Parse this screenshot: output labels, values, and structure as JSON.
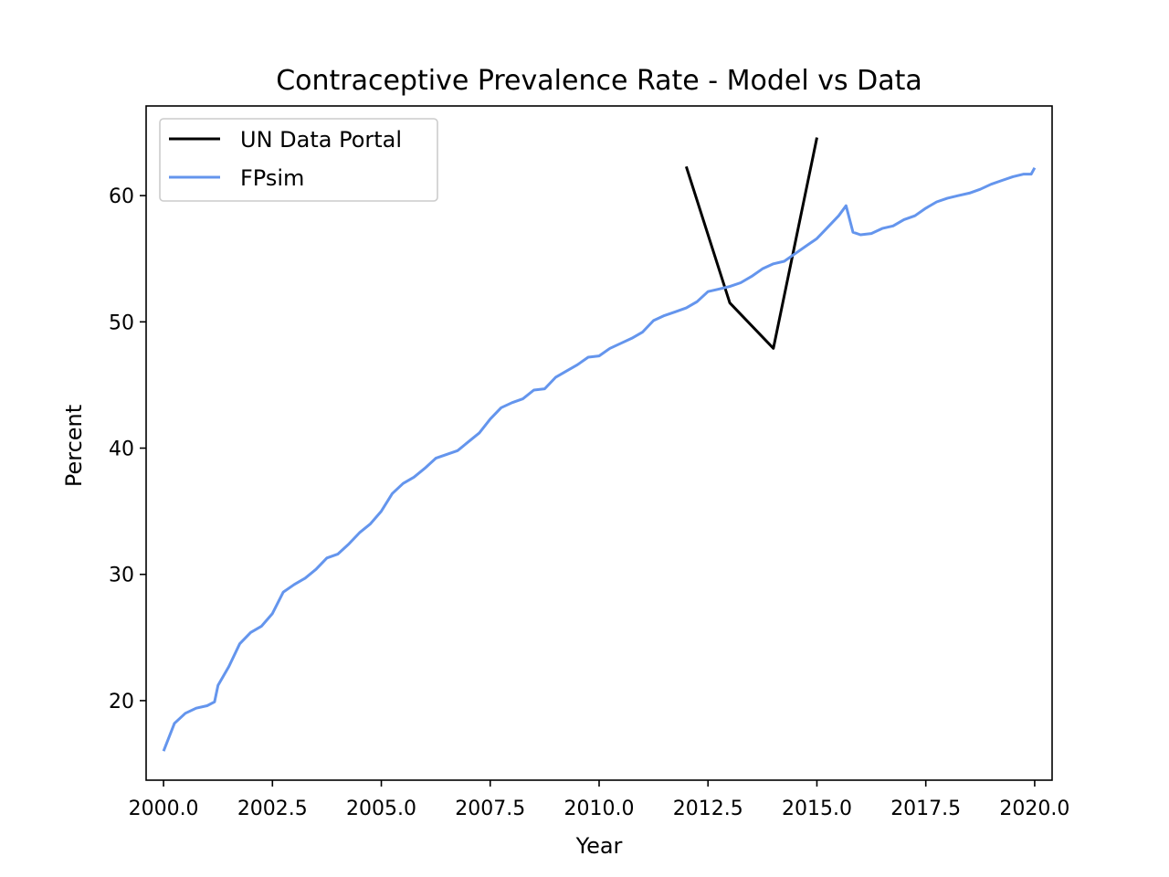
{
  "chart_data": {
    "type": "line",
    "title": "Contraceptive Prevalence Rate - Model vs Data",
    "xlabel": "Year",
    "ylabel": "Percent",
    "xlim": [
      1999.6,
      2020.4
    ],
    "ylim": [
      13.7,
      67.1
    ],
    "xticks": [
      2000.0,
      2002.5,
      2005.0,
      2007.5,
      2010.0,
      2012.5,
      2015.0,
      2017.5,
      2020.0
    ],
    "xtick_labels": [
      "2000.0",
      "2002.5",
      "2005.0",
      "2007.5",
      "2010.0",
      "2012.5",
      "2015.0",
      "2017.5",
      "2020.0"
    ],
    "yticks": [
      20,
      30,
      40,
      50,
      60
    ],
    "ytick_labels": [
      "20",
      "30",
      "40",
      "50",
      "60"
    ],
    "grid": false,
    "legend_position": "top-left",
    "series": [
      {
        "name": "UN Data Portal",
        "color": "#000000",
        "x": [
          2012,
          2013,
          2014,
          2015
        ],
        "y": [
          62.3,
          51.5,
          47.9,
          64.6
        ]
      },
      {
        "name": "FPsim",
        "color": "#6495ED",
        "x": [
          2000.0,
          2000.25,
          2000.5,
          2000.75,
          2001.0,
          2001.17,
          2001.25,
          2001.5,
          2001.75,
          2002.0,
          2002.25,
          2002.5,
          2002.75,
          2003.0,
          2003.25,
          2003.5,
          2003.75,
          2004.0,
          2004.25,
          2004.5,
          2004.75,
          2005.0,
          2005.25,
          2005.5,
          2005.75,
          2006.0,
          2006.25,
          2006.5,
          2006.75,
          2007.0,
          2007.25,
          2007.5,
          2007.75,
          2008.0,
          2008.25,
          2008.5,
          2008.75,
          2009.0,
          2009.25,
          2009.5,
          2009.75,
          2010.0,
          2010.25,
          2010.5,
          2010.75,
          2011.0,
          2011.25,
          2011.5,
          2011.75,
          2012.0,
          2012.25,
          2012.5,
          2012.75,
          2013.0,
          2013.25,
          2013.5,
          2013.75,
          2014.0,
          2014.25,
          2014.5,
          2014.75,
          2015.0,
          2015.25,
          2015.5,
          2015.67,
          2015.83,
          2016.0,
          2016.25,
          2016.5,
          2016.75,
          2017.0,
          2017.25,
          2017.5,
          2017.75,
          2018.0,
          2018.25,
          2018.5,
          2018.75,
          2019.0,
          2019.25,
          2019.5,
          2019.75,
          2019.92,
          2020.0
        ],
        "y": [
          16.0,
          18.2,
          19.0,
          19.4,
          19.6,
          19.9,
          21.2,
          22.7,
          24.5,
          25.4,
          25.9,
          26.9,
          28.6,
          29.2,
          29.7,
          30.4,
          31.3,
          31.6,
          32.4,
          33.3,
          34.0,
          35.0,
          36.4,
          37.2,
          37.7,
          38.4,
          39.2,
          39.5,
          39.8,
          40.5,
          41.2,
          42.3,
          43.2,
          43.6,
          43.9,
          44.6,
          44.7,
          45.6,
          46.1,
          46.6,
          47.2,
          47.3,
          47.9,
          48.3,
          48.7,
          49.2,
          50.1,
          50.5,
          50.8,
          51.1,
          51.6,
          52.4,
          52.6,
          52.8,
          53.1,
          53.6,
          54.2,
          54.6,
          54.8,
          55.4,
          56.0,
          56.6,
          57.5,
          58.4,
          59.2,
          57.1,
          56.9,
          57.0,
          57.4,
          57.6,
          58.1,
          58.4,
          59.0,
          59.5,
          59.8,
          60.0,
          60.2,
          60.5,
          60.9,
          61.2,
          61.5,
          61.7,
          61.7,
          62.2
        ]
      }
    ]
  }
}
